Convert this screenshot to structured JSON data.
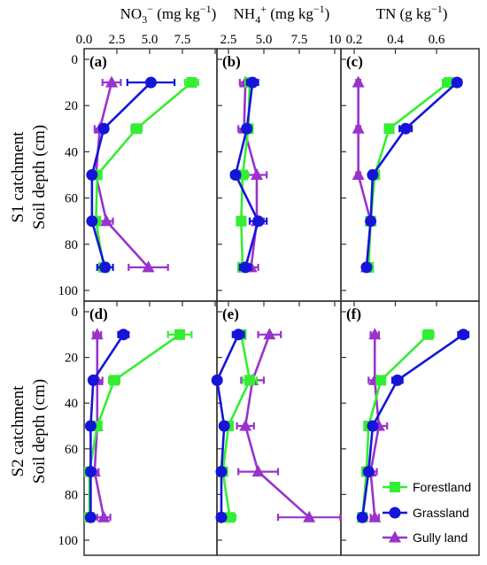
{
  "chart_data": {
    "type": "line",
    "layout": "3-column x 2-row panel grid, profiles plotted with concentration on top x-axis and soil depth on inverted y-axis",
    "y_axis": {
      "label_line1": "Soil depth (cm)",
      "range": [
        0,
        100
      ],
      "inverted": true,
      "ticks": [
        0,
        20,
        40,
        60,
        80,
        100
      ]
    },
    "columns": [
      {
        "title_main": "NO",
        "title_sub": "3",
        "title_sup": "−",
        "title_rest": " (mg kg",
        "title_rest_sup": "−1",
        "title_end": ")",
        "xlim": [
          0,
          10
        ],
        "ticks": [
          0,
          2.5,
          5,
          7.5,
          10
        ],
        "tick_labels": [
          "0.0",
          "2.5",
          "5.0",
          "7.5",
          ""
        ]
      },
      {
        "title_main": "NH",
        "title_sub": "4",
        "title_sup": "+",
        "title_rest": " (mg kg",
        "title_rest_sup": "−1",
        "title_end": ")",
        "xlim": [
          1.5,
          10
        ],
        "ticks": [
          2.5,
          5,
          7.5,
          10
        ],
        "tick_labels": [
          "2.5",
          "5.0",
          "7.5",
          "10"
        ]
      },
      {
        "title_main": "TN (g kg",
        "title_sub": "",
        "title_sup": "",
        "title_rest": "",
        "title_rest_sup": "−1",
        "title_end": ")",
        "xlim": [
          0.2,
          0.8
        ],
        "ticks": [
          0.2,
          0.4,
          0.6
        ],
        "tick_labels": [
          "0.2",
          "0.4",
          "0.6"
        ]
      }
    ],
    "rows": [
      {
        "title_line1": "S1 catchment",
        "title_line2": "Soil depth (cm)"
      },
      {
        "title_line1": "S2 catchment",
        "title_line2": "Soil depth (cm)"
      }
    ],
    "depths": [
      10,
      30,
      50,
      70,
      90
    ],
    "series_styles": [
      {
        "name": "Forestland",
        "color": "#33ee33",
        "marker": "square"
      },
      {
        "name": "Grassland",
        "color": "#1515d8",
        "marker": "circle"
      },
      {
        "name": "Gully land",
        "color": "#9933cc",
        "marker": "triangle"
      }
    ],
    "panels": [
      {
        "letter": "(a)",
        "row": 0,
        "col": 0,
        "series": [
          {
            "name": "Forestland",
            "values": [
              8.2,
              4.0,
              1.0,
              0.9,
              1.5
            ],
            "errors": [
              0.5,
              0.4,
              0.3,
              0.3,
              0.4
            ]
          },
          {
            "name": "Grassland",
            "values": [
              5.1,
              1.5,
              0.6,
              0.6,
              1.6
            ],
            "errors": [
              1.8,
              0.3,
              0.2,
              0.2,
              0.6
            ]
          },
          {
            "name": "Gully land",
            "values": [
              2.1,
              1.2,
              0.9,
              1.7,
              4.9
            ],
            "errors": [
              0.7,
              0.4,
              0.3,
              0.5,
              1.5
            ]
          }
        ]
      },
      {
        "letter": "(b)",
        "row": 0,
        "col": 1,
        "series": [
          {
            "name": "Forestland",
            "values": [
              4.0,
              3.9,
              3.5,
              3.4,
              3.5
            ],
            "errors": [
              0.3,
              0.3,
              0.4,
              0.3,
              0.3
            ]
          },
          {
            "name": "Grassland",
            "values": [
              4.2,
              3.8,
              3.0,
              4.6,
              3.7
            ],
            "errors": [
              0.4,
              0.3,
              0.3,
              0.6,
              0.4
            ]
          },
          {
            "name": "Gully land",
            "values": [
              3.7,
              3.6,
              4.5,
              4.5,
              4.1
            ],
            "errors": [
              0.4,
              0.4,
              0.7,
              0.5,
              0.5
            ]
          }
        ]
      },
      {
        "letter": "(c)",
        "row": 0,
        "col": 2,
        "series": [
          {
            "name": "Forestland",
            "values": [
              0.66,
              0.37,
              0.3,
              0.28,
              0.27
            ],
            "errors": [
              0.03,
              0.02,
              0.015,
              0.015,
              0.015
            ]
          },
          {
            "name": "Grassland",
            "values": [
              0.7,
              0.45,
              0.29,
              0.28,
              0.26
            ],
            "errors": [
              0.02,
              0.03,
              0.015,
              0.015,
              0.015
            ]
          },
          {
            "name": "Gully land",
            "values": [
              0.22,
              0.22,
              0.22,
              0.28,
              0.26
            ],
            "errors": [
              0.01,
              0.01,
              0.01,
              0.015,
              0.015
            ]
          }
        ]
      },
      {
        "letter": "(d)",
        "row": 1,
        "col": 0,
        "series": [
          {
            "name": "Forestland",
            "values": [
              7.3,
              2.3,
              1.0,
              0.4,
              0.4
            ],
            "errors": [
              0.9,
              0.4,
              0.2,
              0.1,
              0.1
            ]
          },
          {
            "name": "Grassland",
            "values": [
              3.0,
              0.7,
              0.5,
              0.5,
              0.5
            ],
            "errors": [
              0.4,
              0.2,
              0.1,
              0.1,
              0.1
            ]
          },
          {
            "name": "Gully land",
            "values": [
              1.0,
              1.0,
              1.0,
              0.8,
              1.5
            ],
            "errors": [
              0.3,
              0.4,
              0.3,
              0.3,
              0.5
            ]
          }
        ]
      },
      {
        "letter": "(e)",
        "row": 1,
        "col": 1,
        "series": [
          {
            "name": "Forestland",
            "values": [
              3.4,
              4.0,
              2.5,
              2.1,
              2.6
            ],
            "errors": [
              0.3,
              0.5,
              0.3,
              0.2,
              0.4
            ]
          },
          {
            "name": "Grassland",
            "values": [
              3.2,
              1.7,
              2.2,
              2.0,
              2.0
            ],
            "errors": [
              0.4,
              0.2,
              0.2,
              0.2,
              0.2
            ]
          },
          {
            "name": "Gully land",
            "values": [
              5.4,
              4.2,
              3.7,
              4.6,
              8.2
            ],
            "errors": [
              0.8,
              0.8,
              0.6,
              1.4,
              2.2
            ]
          }
        ]
      },
      {
        "letter": "(f)",
        "row": 1,
        "col": 2,
        "series": [
          {
            "name": "Forestland",
            "values": [
              0.56,
              0.33,
              0.27,
              0.26,
              0.24
            ],
            "errors": [
              0.025,
              0.02,
              0.015,
              0.015,
              0.015
            ]
          },
          {
            "name": "Grassland",
            "values": [
              0.73,
              0.41,
              0.29,
              0.27,
              0.24
            ],
            "errors": [
              0.025,
              0.025,
              0.015,
              0.015,
              0.015
            ]
          },
          {
            "name": "Gully land",
            "values": [
              0.3,
              0.3,
              0.32,
              0.28,
              0.3
            ],
            "errors": [
              0.02,
              0.03,
              0.04,
              0.03,
              0.02
            ]
          }
        ]
      }
    ],
    "legend": {
      "placement": "bottom-right",
      "entries": [
        "Forestland",
        "Grassland",
        "Gully land"
      ]
    }
  }
}
